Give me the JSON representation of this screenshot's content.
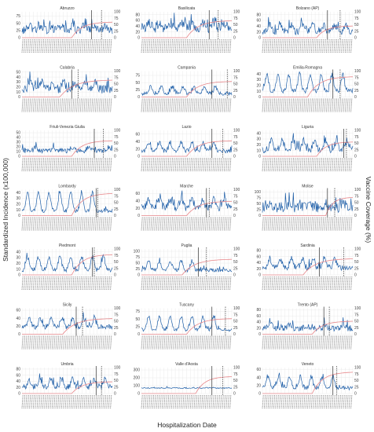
{
  "figure": {
    "x_axis_title": "Hospitalization Date",
    "y_axis_title_left": "Standardized Incidence (x100,000)",
    "y_axis_title_right": "Vaccine Coverage (%)",
    "colors": {
      "incidence": "#1f5fa8",
      "coverage": "#e8878a",
      "vline": "#333333",
      "grid": "#e6e6e6"
    }
  },
  "chart_data": [
    {
      "type": "line",
      "title": "Abruzzo",
      "y_ticks_left": [
        "0",
        "25",
        "50",
        "75"
      ],
      "y_ticks_right": [
        "0",
        "25",
        "50",
        "75",
        "100"
      ],
      "ylim_left": [
        0,
        90
      ],
      "ylim_right": [
        0,
        100
      ],
      "incidence_base": 26,
      "incidence_amp": 10,
      "incidence_noise": 14,
      "peak_positions": [
        0.08,
        0.2,
        0.32,
        0.44,
        0.56,
        0.68,
        0.8,
        0.92
      ],
      "coverage_start": 0.55,
      "coverage_final": 60,
      "solid_vline": 0.77,
      "dashed_vline": 0.88
    },
    {
      "type": "line",
      "title": "Basilicata",
      "y_ticks_left": [
        "0",
        "20",
        "40",
        "60",
        "80"
      ],
      "y_ticks_right": [
        "0",
        "25",
        "50",
        "75",
        "100"
      ],
      "ylim_left": [
        0,
        90
      ],
      "ylim_right": [
        0,
        100
      ],
      "incidence_base": 35,
      "incidence_amp": 12,
      "incidence_noise": 18,
      "peak_positions": [
        0.08,
        0.2,
        0.32,
        0.44,
        0.56,
        0.68,
        0.8,
        0.92
      ],
      "coverage_start": 0.5,
      "coverage_final": 65,
      "solid_vline": 0.75,
      "dashed_vline": 0.85
    },
    {
      "type": "line",
      "title": "Bolzano (AP)",
      "y_ticks_left": [
        "0",
        "20",
        "40",
        "60",
        "80"
      ],
      "y_ticks_right": [
        "0",
        "25",
        "50",
        "75",
        "100"
      ],
      "ylim_left": [
        0,
        90
      ],
      "ylim_right": [
        0,
        100
      ],
      "incidence_base": 22,
      "incidence_amp": 14,
      "incidence_noise": 12,
      "peak_positions": [
        0.08,
        0.2,
        0.32,
        0.44,
        0.56,
        0.68,
        0.8,
        0.92
      ],
      "coverage_start": 0.6,
      "coverage_final": 45,
      "solid_vline": 0.72,
      "dashed_vline": 0.86
    },
    {
      "type": "line",
      "title": "Calabria",
      "y_ticks_left": [
        "0",
        "10",
        "20",
        "30",
        "40",
        "50"
      ],
      "y_ticks_right": [
        "0",
        "25",
        "50",
        "75",
        "100"
      ],
      "ylim_left": [
        0,
        52
      ],
      "ylim_right": [
        0,
        100
      ],
      "incidence_base": 16,
      "incidence_amp": 9,
      "incidence_noise": 9,
      "peak_positions": [
        0.1,
        0.22,
        0.34,
        0.46,
        0.58,
        0.7,
        0.82
      ],
      "coverage_start": 0.42,
      "coverage_final": 65,
      "solid_vline": 0.55,
      "dashed_vline": 0.62
    },
    {
      "type": "line",
      "title": "Campania",
      "y_ticks_left": [
        "0",
        "25",
        "50",
        "75"
      ],
      "y_ticks_right": [
        "0",
        "25",
        "50",
        "75",
        "100"
      ],
      "ylim_left": [
        0,
        90
      ],
      "ylim_right": [
        0,
        100
      ],
      "incidence_base": 12,
      "incidence_amp": 15,
      "incidence_noise": 6,
      "peak_positions": [
        0.1,
        0.22,
        0.34,
        0.46,
        0.58,
        0.7,
        0.82
      ],
      "coverage_start": 0.5,
      "coverage_final": 60,
      "solid_vline": 0.78,
      "dashed_vline": 0.95
    },
    {
      "type": "line",
      "title": "Emilia-Romagna",
      "y_ticks_left": [
        "0",
        "10",
        "20",
        "30",
        "40"
      ],
      "y_ticks_right": [
        "0",
        "25",
        "50",
        "75",
        "100"
      ],
      "ylim_left": [
        0,
        45
      ],
      "ylim_right": [
        0,
        100
      ],
      "incidence_base": 10,
      "incidence_amp": 18,
      "incidence_noise": 4,
      "peak_positions": [
        0.05,
        0.17,
        0.29,
        0.41,
        0.53,
        0.65,
        0.77,
        0.89
      ],
      "coverage_start": 0.5,
      "coverage_final": 78,
      "solid_vline": 0.78,
      "dashed_vline": 0.86
    },
    {
      "type": "line",
      "title": "Friuli-Venezia Giulia",
      "y_ticks_left": [
        "0",
        "10",
        "20",
        "30",
        "40",
        "50"
      ],
      "y_ticks_right": [
        "0",
        "25",
        "50",
        "75",
        "100"
      ],
      "ylim_left": [
        0,
        55
      ],
      "ylim_right": [
        0,
        100
      ],
      "incidence_base": 12,
      "incidence_amp": 4,
      "incidence_noise": 5,
      "peak_positions": [
        0.15,
        0.35,
        0.55,
        0.75,
        0.95
      ],
      "coverage_start": 0.55,
      "coverage_final": 60,
      "solid_vline": 0.8,
      "dashed_vline": 0.9
    },
    {
      "type": "line",
      "title": "Lazio",
      "y_ticks_left": [
        "0",
        "20",
        "40",
        "60"
      ],
      "y_ticks_right": [
        "0",
        "25",
        "50",
        "75",
        "100"
      ],
      "ylim_left": [
        0,
        70
      ],
      "ylim_right": [
        0,
        100
      ],
      "incidence_base": 15,
      "incidence_amp": 14,
      "incidence_noise": 6,
      "peak_positions": [
        0.08,
        0.2,
        0.32,
        0.44,
        0.56,
        0.68,
        0.8
      ],
      "coverage_start": 0.5,
      "coverage_final": 60,
      "solid_vline": 0.78,
      "dashed_vline": 0.9
    },
    {
      "type": "line",
      "title": "Liguria",
      "y_ticks_left": [
        "0",
        "10",
        "20",
        "30",
        "40"
      ],
      "y_ticks_right": [
        "0",
        "25",
        "50",
        "75",
        "100"
      ],
      "ylim_left": [
        0,
        45
      ],
      "ylim_right": [
        0,
        100
      ],
      "incidence_base": 12,
      "incidence_amp": 10,
      "incidence_noise": 6,
      "peak_positions": [
        0.1,
        0.22,
        0.34,
        0.46,
        0.58,
        0.7,
        0.82,
        0.94
      ],
      "coverage_start": 0.6,
      "coverage_final": 55,
      "solid_vline": 0.9,
      "dashed_vline": 0.93
    },
    {
      "type": "line",
      "title": "Lombardy",
      "y_ticks_left": [
        "0",
        "10",
        "20",
        "30",
        "40"
      ],
      "y_ticks_right": [
        "0",
        "25",
        "50",
        "75",
        "100"
      ],
      "ylim_left": [
        0,
        45
      ],
      "ylim_right": [
        0,
        100
      ],
      "incidence_base": 8,
      "incidence_amp": 20,
      "incidence_noise": 3,
      "peak_positions": [
        0.06,
        0.18,
        0.3,
        0.42,
        0.54,
        0.66,
        0.78
      ],
      "coverage_start": 0.55,
      "coverage_final": 85,
      "solid_vline": 0.82,
      "dashed_vline": 0.84
    },
    {
      "type": "line",
      "title": "Marche",
      "y_ticks_left": [
        "0",
        "20",
        "40",
        "60"
      ],
      "y_ticks_right": [
        "0",
        "25",
        "50",
        "75",
        "100"
      ],
      "ylim_left": [
        0,
        70
      ],
      "ylim_right": [
        0,
        100
      ],
      "incidence_base": 22,
      "incidence_amp": 14,
      "incidence_noise": 10,
      "peak_positions": [
        0.08,
        0.2,
        0.32,
        0.44,
        0.56,
        0.68,
        0.8,
        0.92
      ],
      "coverage_start": 0.5,
      "coverage_final": 55,
      "solid_vline": 0.72,
      "dashed_vline": 0.75
    },
    {
      "type": "line",
      "title": "Molise",
      "y_ticks_left": [
        "0",
        "25",
        "50",
        "75",
        "100"
      ],
      "y_ticks_right": [
        "0",
        "25",
        "50",
        "75",
        "100"
      ],
      "ylim_left": [
        0,
        110
      ],
      "ylim_right": [
        0,
        100
      ],
      "incidence_base": 35,
      "incidence_amp": 10,
      "incidence_noise": 22,
      "peak_positions": [
        0.1,
        0.3,
        0.5,
        0.7,
        0.9
      ],
      "coverage_start": 0.7,
      "coverage_final": 70,
      "solid_vline": 0.72,
      "dashed_vline": 0.8
    },
    {
      "type": "line",
      "title": "Piedmont",
      "y_ticks_left": [
        "0",
        "10",
        "20",
        "30",
        "40"
      ],
      "y_ticks_right": [
        "0",
        "25",
        "50",
        "75",
        "100"
      ],
      "ylim_left": [
        0,
        45
      ],
      "ylim_right": [
        0,
        100
      ],
      "incidence_base": 9,
      "incidence_amp": 14,
      "incidence_noise": 4,
      "peak_positions": [
        0.06,
        0.18,
        0.3,
        0.42,
        0.54,
        0.66,
        0.78,
        0.9
      ],
      "coverage_start": 0.55,
      "coverage_final": 78,
      "solid_vline": 0.78,
      "dashed_vline": 0.8
    },
    {
      "type": "line",
      "title": "Puglia",
      "y_ticks_left": [
        "0",
        "25",
        "50",
        "75",
        "100"
      ],
      "y_ticks_right": [
        "0",
        "25",
        "50",
        "75",
        "100"
      ],
      "ylim_left": [
        0,
        110
      ],
      "ylim_right": [
        0,
        100
      ],
      "incidence_base": 20,
      "incidence_amp": 25,
      "incidence_noise": 8,
      "peak_positions": [
        0.08,
        0.2,
        0.32,
        0.44,
        0.56
      ],
      "coverage_start": 0.45,
      "coverage_final": 60,
      "solid_vline": 0.63,
      "dashed_vline": 0.72
    },
    {
      "type": "line",
      "title": "Sardinia",
      "y_ticks_left": [
        "0",
        "20",
        "40",
        "60",
        "80"
      ],
      "y_ticks_right": [
        "0",
        "25",
        "50",
        "75",
        "100"
      ],
      "ylim_left": [
        0,
        85
      ],
      "ylim_right": [
        0,
        100
      ],
      "incidence_base": 25,
      "incidence_amp": 18,
      "incidence_noise": 10,
      "peak_positions": [
        0.08,
        0.2,
        0.32,
        0.44,
        0.56,
        0.68,
        0.8
      ],
      "coverage_start": 0.45,
      "coverage_final": 62,
      "solid_vline": 0.63,
      "dashed_vline": 0.9
    },
    {
      "type": "line",
      "title": "Sicily",
      "y_ticks_left": [
        "0",
        "20",
        "40",
        "60"
      ],
      "y_ticks_right": [
        "0",
        "25",
        "50",
        "75",
        "100"
      ],
      "ylim_left": [
        0,
        65
      ],
      "ylim_right": [
        0,
        100
      ],
      "incidence_base": 18,
      "incidence_amp": 14,
      "incidence_noise": 6,
      "peak_positions": [
        0.08,
        0.2,
        0.32,
        0.44,
        0.56,
        0.68,
        0.8
      ],
      "coverage_start": 0.45,
      "coverage_final": 60,
      "solid_vline": 0.6,
      "dashed_vline": 0.67
    },
    {
      "type": "line",
      "title": "Tuscany",
      "y_ticks_left": [
        "0",
        "25",
        "50",
        "75"
      ],
      "y_ticks_right": [
        "0",
        "25",
        "50",
        "75",
        "100"
      ],
      "ylim_left": [
        0,
        85
      ],
      "ylim_right": [
        0,
        100
      ],
      "incidence_base": 14,
      "incidence_amp": 28,
      "incidence_noise": 5,
      "peak_positions": [
        0.08,
        0.2,
        0.32,
        0.44,
        0.56,
        0.68,
        0.8
      ],
      "coverage_start": 0.5,
      "coverage_final": 60,
      "solid_vline": 0.78,
      "dashed_vline": 0.93
    },
    {
      "type": "line",
      "title": "Trento (AP)",
      "y_ticks_left": [
        "0",
        "20",
        "40",
        "60",
        "80"
      ],
      "y_ticks_right": [
        "0",
        "25",
        "50",
        "75",
        "100"
      ],
      "ylim_left": [
        0,
        85
      ],
      "ylim_right": [
        0,
        100
      ],
      "incidence_base": 20,
      "incidence_amp": 6,
      "incidence_noise": 10,
      "peak_positions": [
        0.1,
        0.3,
        0.5,
        0.7,
        0.9
      ],
      "coverage_start": 0.55,
      "coverage_final": 50,
      "solid_vline": 0.68,
      "dashed_vline": 0.74
    },
    {
      "type": "line",
      "title": "Umbria",
      "y_ticks_left": [
        "0",
        "20",
        "40",
        "60",
        "80"
      ],
      "y_ticks_right": [
        "0",
        "25",
        "50",
        "75",
        "100"
      ],
      "ylim_left": [
        0,
        85
      ],
      "ylim_right": [
        0,
        100
      ],
      "incidence_base": 22,
      "incidence_amp": 16,
      "incidence_noise": 10,
      "peak_positions": [
        0.08,
        0.2,
        0.32,
        0.44,
        0.56,
        0.68,
        0.8,
        0.92
      ],
      "coverage_start": 0.55,
      "coverage_final": 45,
      "solid_vline": 0.82,
      "dashed_vline": 0.88
    },
    {
      "type": "line",
      "title": "Valle d'Aosta",
      "y_ticks_left": [
        "0",
        "100",
        "200",
        "300"
      ],
      "y_ticks_right": [
        "0",
        "25",
        "50",
        "75",
        "100"
      ],
      "ylim_left": [
        0,
        330
      ],
      "ylim_right": [
        0,
        100
      ],
      "incidence_base": 70,
      "incidence_amp": 3,
      "incidence_noise": 6,
      "peak_positions": [
        0.3,
        0.8
      ],
      "coverage_start": 0.6,
      "coverage_final": 65,
      "solid_vline": 0.78,
      "dashed_vline": 0.9
    },
    {
      "type": "line",
      "title": "Veneto",
      "y_ticks_left": [
        "0",
        "20",
        "40",
        "60"
      ],
      "y_ticks_right": [
        "0",
        "25",
        "50",
        "75",
        "100"
      ],
      "ylim_left": [
        0,
        65
      ],
      "ylim_right": [
        0,
        100
      ],
      "incidence_base": 14,
      "incidence_amp": 18,
      "incidence_noise": 5,
      "peak_positions": [
        0.06,
        0.18,
        0.3,
        0.42,
        0.54,
        0.66,
        0.78
      ],
      "coverage_start": 0.55,
      "coverage_final": 82,
      "solid_vline": 0.78,
      "dashed_vline": 0.82
    }
  ]
}
